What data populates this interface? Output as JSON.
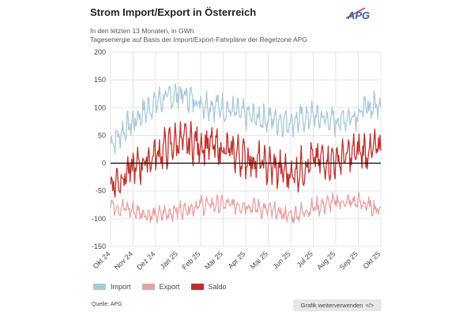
{
  "header": {
    "title": "Strom Import/Export in Österreich",
    "subtitle_1": "In den letzten 13 Monaten, in GWh",
    "subtitle_2": "Tagesenergie auf Basis der Import/Export-Fahrpläne der Regelzone APG",
    "logo_text": "APG"
  },
  "footer": {
    "source": "Quelle: APG",
    "reuse_label": "Grafik weiterverwenden",
    "reuse_icon_text": "</>"
  },
  "colors": {
    "import": "#a9cad9",
    "export": "#e6a3a3",
    "saldo": "#c0302c",
    "grid": "#e4e4e4",
    "zero": "#111111"
  },
  "chart_data": {
    "type": "line",
    "title": "Strom Import/Export in Österreich",
    "xlabel": "",
    "ylabel": "GWh",
    "ylim": [
      -150,
      200
    ],
    "yticks": [
      200,
      150,
      100,
      50,
      0,
      -50,
      -100,
      -150
    ],
    "x_tick_labels": [
      "Okt 24",
      "Nov 24",
      "Dez 24",
      "Jan 25",
      "Feb 25",
      "Mär 25",
      "Apr 25",
      "Mai 25",
      "Jun 25",
      "Jul 25",
      "Aug 25",
      "Sep 25",
      "Okt 25"
    ],
    "legend": [
      "Import",
      "Export",
      "Saldo"
    ],
    "legend_position": "bottom-left",
    "x_resolution": "monthly (anchor points; daily series drawn between them)",
    "series": [
      {
        "name": "Import",
        "values": [
          35,
          75,
          110,
          125,
          110,
          100,
          85,
          80,
          75,
          85,
          75,
          90,
          110
        ]
      },
      {
        "name": "Export",
        "values": [
          -75,
          -85,
          -95,
          -85,
          -75,
          -75,
          -75,
          -85,
          -95,
          -80,
          -70,
          -70,
          -85
        ]
      },
      {
        "name": "Saldo",
        "values": [
          -40,
          -10,
          15,
          40,
          35,
          25,
          10,
          -5,
          -20,
          5,
          5,
          20,
          25
        ]
      }
    ]
  }
}
